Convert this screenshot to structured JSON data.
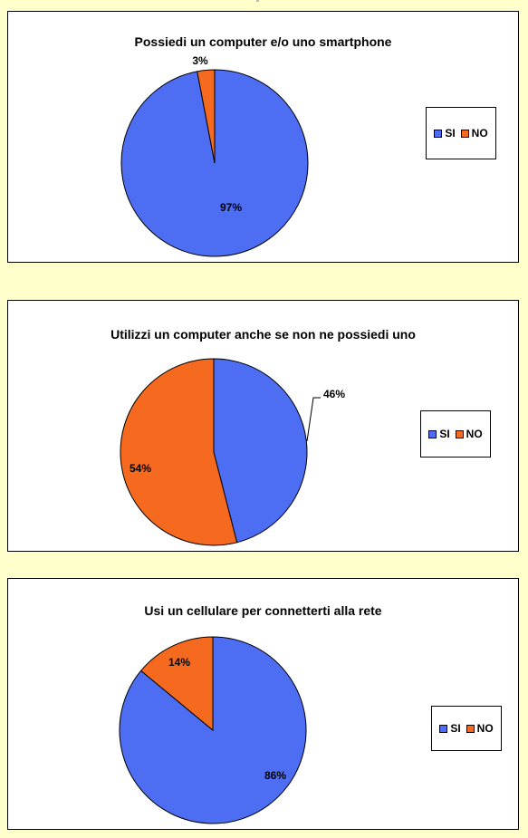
{
  "colors": {
    "si": "#4d6df3",
    "no": "#f56a1e"
  },
  "chart_data": [
    {
      "type": "pie",
      "title": "Possiedi un computer e/o uno smartphone",
      "categories": [
        "SI",
        "NO"
      ],
      "values": [
        97,
        3
      ],
      "labels": [
        "97%",
        "3%"
      ],
      "legend": "right"
    },
    {
      "type": "pie",
      "title": "Utilizzi un computer anche se non ne possiedi  uno",
      "categories": [
        "SI",
        "NO"
      ],
      "values": [
        46,
        54
      ],
      "labels": [
        "46%",
        "54%"
      ],
      "legend": "right"
    },
    {
      "type": "pie",
      "title": "Usi un cellulare per connetterti alla rete",
      "categories": [
        "SI",
        "NO"
      ],
      "values": [
        86,
        14
      ],
      "labels": [
        "86%",
        "14%"
      ],
      "legend": "right"
    }
  ]
}
